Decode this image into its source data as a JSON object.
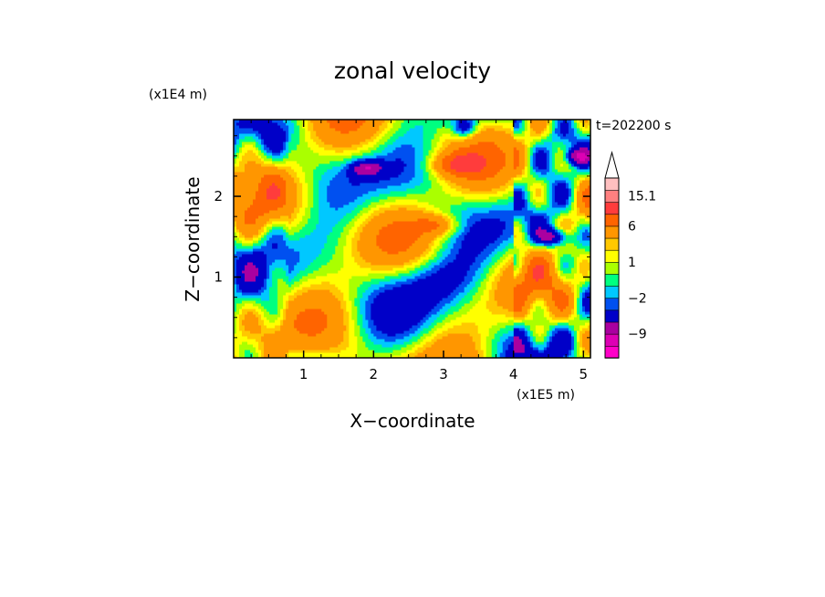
{
  "chart_data": {
    "type": "heatmap",
    "title": "zonal velocity",
    "xlabel": "X−coordinate",
    "ylabel": "Z−coordinate",
    "x_scale_label": "(x1E5 m)",
    "y_scale_label": "(x1E4 m)",
    "time_label": "t=202200 s",
    "xlim": [
      0,
      5.1
    ],
    "ylim": [
      0,
      2.95
    ],
    "x_ticks": [
      1,
      2,
      3,
      4,
      5
    ],
    "x_tick_labels": [
      "1",
      "2",
      "3",
      "4",
      "5"
    ],
    "y_ticks": [
      1,
      2
    ],
    "y_tick_labels": [
      "1",
      "2"
    ],
    "colorbar": {
      "labels": [
        {
          "value": 15.1,
          "text": "15.1"
        },
        {
          "value": 6,
          "text": "6"
        },
        {
          "value": 1,
          "text": "1"
        },
        {
          "value": -2,
          "text": "−2"
        },
        {
          "value": -9,
          "text": "−9"
        }
      ],
      "levels": [
        {
          "value": -15,
          "color": "#ff00c8"
        },
        {
          "value": -12,
          "color": "#dd00b4"
        },
        {
          "value": -9,
          "color": "#aa00a0"
        },
        {
          "value": -6,
          "color": "#0000c8"
        },
        {
          "value": -3,
          "color": "#0050f0"
        },
        {
          "value": -2,
          "color": "#00c8ff"
        },
        {
          "value": -1,
          "color": "#00ff80"
        },
        {
          "value": 0,
          "color": "#aaff00"
        },
        {
          "value": 1,
          "color": "#ffff00"
        },
        {
          "value": 2,
          "color": "#ffc800"
        },
        {
          "value": 3,
          "color": "#ff9600"
        },
        {
          "value": 6,
          "color": "#ff6400"
        },
        {
          "value": 9,
          "color": "#ff3c3c"
        },
        {
          "value": 12,
          "color": "#ff8080"
        },
        {
          "value": 15.1,
          "color": "#ffc0c0"
        }
      ],
      "extend": "max"
    }
  }
}
